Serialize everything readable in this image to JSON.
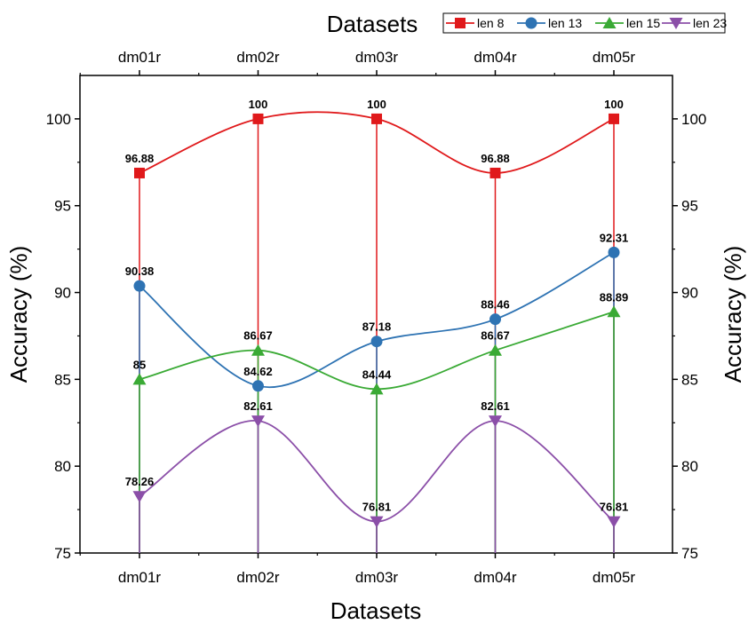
{
  "chart_data": {
    "type": "line",
    "xlabel_top": "Datasets",
    "xlabel_bottom": "Datasets",
    "ylabel_left": "Accuracy (%)",
    "ylabel_right": "Accuracy (%)",
    "categories": [
      "dm01r",
      "dm02r",
      "dm03r",
      "dm04r",
      "dm05r"
    ],
    "ylim": [
      75,
      102.5
    ],
    "yticks": [
      75,
      80,
      85,
      90,
      95,
      100
    ],
    "legend_position": "top-right",
    "drop_lines": true,
    "smooth": true,
    "series": [
      {
        "name": "len 8",
        "values": [
          96.88,
          100,
          100,
          96.88,
          100
        ],
        "labels": [
          "96.88",
          "100",
          "100",
          "96.88",
          "100"
        ],
        "color": "#e0191b",
        "marker": "square"
      },
      {
        "name": "len 13",
        "values": [
          90.38,
          84.62,
          87.18,
          88.46,
          92.31
        ],
        "labels": [
          "90.38",
          "84.62",
          "87.18",
          "88.46",
          "92.31"
        ],
        "color": "#2e73b3",
        "marker": "circle"
      },
      {
        "name": "len 15",
        "values": [
          85,
          86.67,
          84.44,
          86.67,
          88.89
        ],
        "labels": [
          "85",
          "86.67",
          "84.44",
          "86.67",
          "88.89"
        ],
        "color": "#3aaa35",
        "marker": "triangle-up"
      },
      {
        "name": "len 23",
        "values": [
          78.26,
          82.61,
          76.81,
          82.61,
          76.81
        ],
        "labels": [
          "78.26",
          "82.61",
          "76.81",
          "82.61",
          "76.81"
        ],
        "color": "#8b4fa8",
        "marker": "triangle-down"
      }
    ]
  }
}
